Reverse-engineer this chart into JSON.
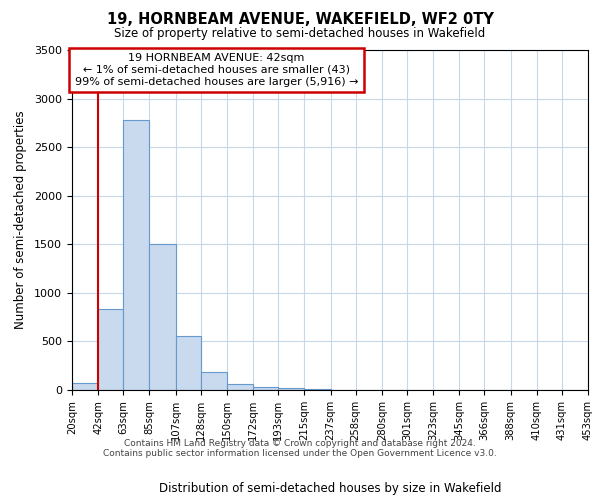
{
  "title": "19, HORNBEAM AVENUE, WAKEFIELD, WF2 0TY",
  "subtitle": "Size of property relative to semi-detached houses in Wakefield",
  "xlabel": "Distribution of semi-detached houses by size in Wakefield",
  "ylabel": "Number of semi-detached properties",
  "bin_edges": [
    20,
    42,
    63,
    85,
    107,
    128,
    150,
    172,
    193,
    215,
    237,
    258,
    280,
    301,
    323,
    345,
    366,
    388,
    410,
    431,
    453
  ],
  "bar_heights": [
    70,
    830,
    2780,
    1500,
    560,
    185,
    60,
    30,
    20,
    10,
    5,
    3,
    2,
    2,
    1,
    1,
    1,
    1,
    1,
    1
  ],
  "bar_color": "#c9d9ee",
  "bar_edge_color": "#6699cc",
  "property_line_x": 42,
  "property_line_color": "#cc0000",
  "annotation_title": "19 HORNBEAM AVENUE: 42sqm",
  "annotation_line1": "← 1% of semi-detached houses are smaller (43)",
  "annotation_line2": "99% of semi-detached houses are larger (5,916) →",
  "annotation_box_color": "#cc0000",
  "ylim": [
    0,
    3500
  ],
  "yticks": [
    0,
    500,
    1000,
    1500,
    2000,
    2500,
    3000,
    3500
  ],
  "footer_line1": "Contains HM Land Registry data © Crown copyright and database right 2024.",
  "footer_line2": "Contains public sector information licensed under the Open Government Licence v3.0.",
  "background_color": "#ffffff",
  "grid_color": "#c8d8e8"
}
